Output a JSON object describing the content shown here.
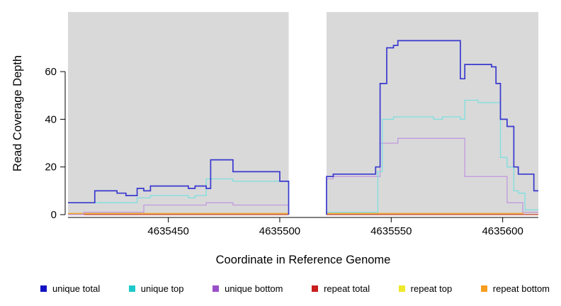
{
  "chart_data": {
    "type": "line",
    "subtype": "step-coverage",
    "title": "",
    "xlabel": "Coordinate in Reference Genome",
    "ylabel": "Read Coverage Depth",
    "xlim": [
      4635405,
      4635616
    ],
    "ylim": [
      0,
      85
    ],
    "x_ticks": [
      4635450,
      4635500,
      4635550,
      4635600
    ],
    "y_ticks": [
      0,
      20,
      40,
      60
    ],
    "grid": false,
    "legend_position": "bottom",
    "panel_background": "#d9d9d9",
    "gap_region": [
      4635504,
      4635521
    ],
    "panels": [
      [
        4635405,
        4635504
      ],
      [
        4635521,
        4635616
      ]
    ],
    "step": "after",
    "series": [
      {
        "name": "unique total",
        "swatch": "#1212c4",
        "stroke": "#3939cf",
        "segments": [
          [
            [
              4635405,
              5
            ],
            [
              4635417,
              10
            ],
            [
              4635427,
              9
            ],
            [
              4635431,
              8
            ],
            [
              4635436,
              11
            ],
            [
              4635439,
              10
            ],
            [
              4635442,
              12
            ],
            [
              4635459,
              11
            ],
            [
              4635462,
              12
            ],
            [
              4635467,
              11
            ],
            [
              4635469,
              23
            ],
            [
              4635479,
              18
            ],
            [
              4635500,
              14
            ],
            [
              4635504,
              0
            ]
          ],
          [
            [
              4635521,
              0
            ],
            [
              4635521,
              16
            ],
            [
              4635524,
              17
            ],
            [
              4635543,
              20
            ],
            [
              4635545,
              55
            ],
            [
              4635548,
              70
            ],
            [
              4635551,
              71
            ],
            [
              4635553,
              73
            ],
            [
              4635581,
              57
            ],
            [
              4635583,
              63
            ],
            [
              4635595,
              62
            ],
            [
              4635597,
              55
            ],
            [
              4635599,
              40
            ],
            [
              4635602,
              37
            ],
            [
              4635605,
              20
            ],
            [
              4635607,
              17
            ],
            [
              4635614,
              10
            ],
            [
              4635616,
              10
            ]
          ]
        ]
      },
      {
        "name": "unique top",
        "swatch": "#1fc9c9",
        "stroke": "#7edede",
        "segments": [
          [
            [
              4635405,
              5
            ],
            [
              4635436,
              7
            ],
            [
              4635442,
              8
            ],
            [
              4635459,
              7
            ],
            [
              4635462,
              8
            ],
            [
              4635467,
              15
            ],
            [
              4635479,
              14
            ],
            [
              4635504,
              0
            ]
          ],
          [
            [
              4635521,
              0
            ],
            [
              4635521,
              1
            ],
            [
              4635544,
              18
            ],
            [
              4635546,
              40
            ],
            [
              4635551,
              41
            ],
            [
              4635569,
              40
            ],
            [
              4635573,
              41
            ],
            [
              4635581,
              40
            ],
            [
              4635583,
              48
            ],
            [
              4635589,
              47
            ],
            [
              4635599,
              24
            ],
            [
              4635602,
              20
            ],
            [
              4635605,
              10
            ],
            [
              4635607,
              9
            ],
            [
              4635610,
              2
            ],
            [
              4635616,
              2
            ]
          ]
        ]
      },
      {
        "name": "unique bottom",
        "swatch": "#9850c8",
        "stroke": "#c09ade",
        "segments": [
          [
            [
              4635405,
              0
            ],
            [
              4635412,
              1
            ],
            [
              4635439,
              4
            ],
            [
              4635467,
              5
            ],
            [
              4635479,
              4
            ],
            [
              4635504,
              0
            ]
          ],
          [
            [
              4635521,
              0
            ],
            [
              4635521,
              15
            ],
            [
              4635524,
              16
            ],
            [
              4635545,
              30
            ],
            [
              4635553,
              32
            ],
            [
              4635581,
              32
            ],
            [
              4635583,
              16
            ],
            [
              4635599,
              16
            ],
            [
              4635602,
              5
            ],
            [
              4635608,
              5
            ],
            [
              4635609,
              1
            ],
            [
              4635616,
              1
            ]
          ]
        ]
      },
      {
        "name": "repeat total",
        "swatch": "#c81e1e",
        "stroke": "#c04040",
        "segments": [
          [
            [
              4635405,
              0
            ],
            [
              4635504,
              0
            ]
          ],
          [
            [
              4635521,
              0
            ],
            [
              4635616,
              0
            ]
          ]
        ]
      },
      {
        "name": "repeat top",
        "swatch": "#efe92a",
        "stroke": "#efe92a",
        "segments": [
          [
            [
              4635405,
              0
            ],
            [
              4635504,
              0
            ]
          ],
          [
            [
              4635521,
              0
            ],
            [
              4635616,
              0
            ]
          ]
        ]
      },
      {
        "name": "repeat bottom",
        "swatch": "#f59d1e",
        "stroke": "#f5a623",
        "segments": [
          [
            [
              4635405,
              0.5
            ],
            [
              4635504,
              0.5
            ]
          ],
          [
            [
              4635521,
              0.5
            ],
            [
              4635608,
              0.5
            ],
            [
              4635609,
              1
            ],
            [
              4635616,
              1
            ]
          ]
        ]
      }
    ]
  }
}
